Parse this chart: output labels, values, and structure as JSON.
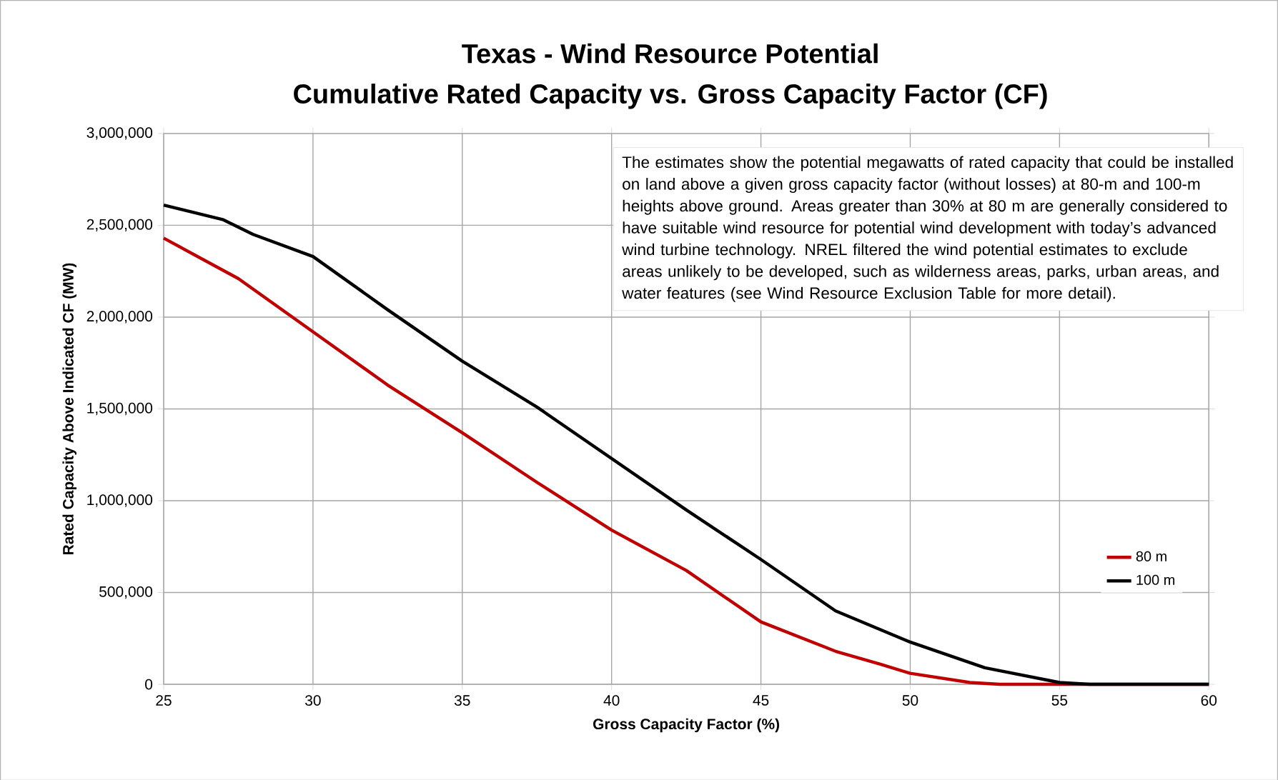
{
  "chart_data": {
    "type": "line",
    "title": "Texas - Wind Resource Potential",
    "subtitle": "Cumulative Rated Capacity vs. Gross Capacity Factor (CF)",
    "xlabel": "Gross Capacity Factor (%)",
    "ylabel": "Rated Capacity Above Indicated CF (MW)",
    "annotations": [
      "The estimates show the potential megawatts of rated capacity that could be installed on land above a given gross capacity factor (without losses) at 80-m and 100-m heights above ground. Areas greater than 30% at 80 m are generally considered to have suitable wind resource for potential wind development with today’s advanced wind turbine technology. NREL filtered the wind potential estimates to exclude areas unlikely to be developed, such as wilderness areas, parks, urban areas, and water features (see Wind Resource Exclusion Table for more detail)."
    ],
    "x": [
      25,
      27.5,
      30,
      32.5,
      35,
      37.5,
      40,
      42.5,
      45,
      47.5,
      49,
      50,
      52,
      53,
      55,
      60
    ],
    "series": [
      {
        "name": "80 m",
        "color": "#c00000",
        "values": [
          2430000,
          2210000,
          1920000,
          1630000,
          1370000,
          1100000,
          840000,
          620000,
          340000,
          180000,
          110000,
          60000,
          10000,
          0,
          0,
          0
        ]
      },
      {
        "name": "100 m",
        "color": "#000000",
        "x": [
          25,
          27,
          28,
          30,
          32.5,
          35,
          37.5,
          40,
          42.5,
          45,
          47.5,
          50,
          52.5,
          55,
          56,
          57,
          60
        ],
        "values": [
          2610000,
          2530000,
          2450000,
          2330000,
          2040000,
          1760000,
          1510000,
          1230000,
          950000,
          680000,
          400000,
          230000,
          90000,
          10000,
          0,
          0,
          0
        ]
      }
    ],
    "xlim": [
      25,
      60
    ],
    "xticks": [
      25,
      30,
      35,
      40,
      45,
      50,
      55,
      60
    ],
    "ylim": [
      0,
      3000000
    ],
    "yticks": [
      {
        "value": 0,
        "label": "0"
      },
      {
        "value": 500000,
        "label": "500,000"
      },
      {
        "value": 1000000,
        "label": "1,000,000"
      },
      {
        "value": 1500000,
        "label": "1,500,000"
      },
      {
        "value": 2000000,
        "label": "2,000,000"
      },
      {
        "value": 2500000,
        "label": "2,500,000"
      },
      {
        "value": 3000000,
        "label": "3,000,000"
      }
    ],
    "grid": true,
    "legend": "bottom right",
    "marker": "none",
    "line_style": "solid"
  }
}
